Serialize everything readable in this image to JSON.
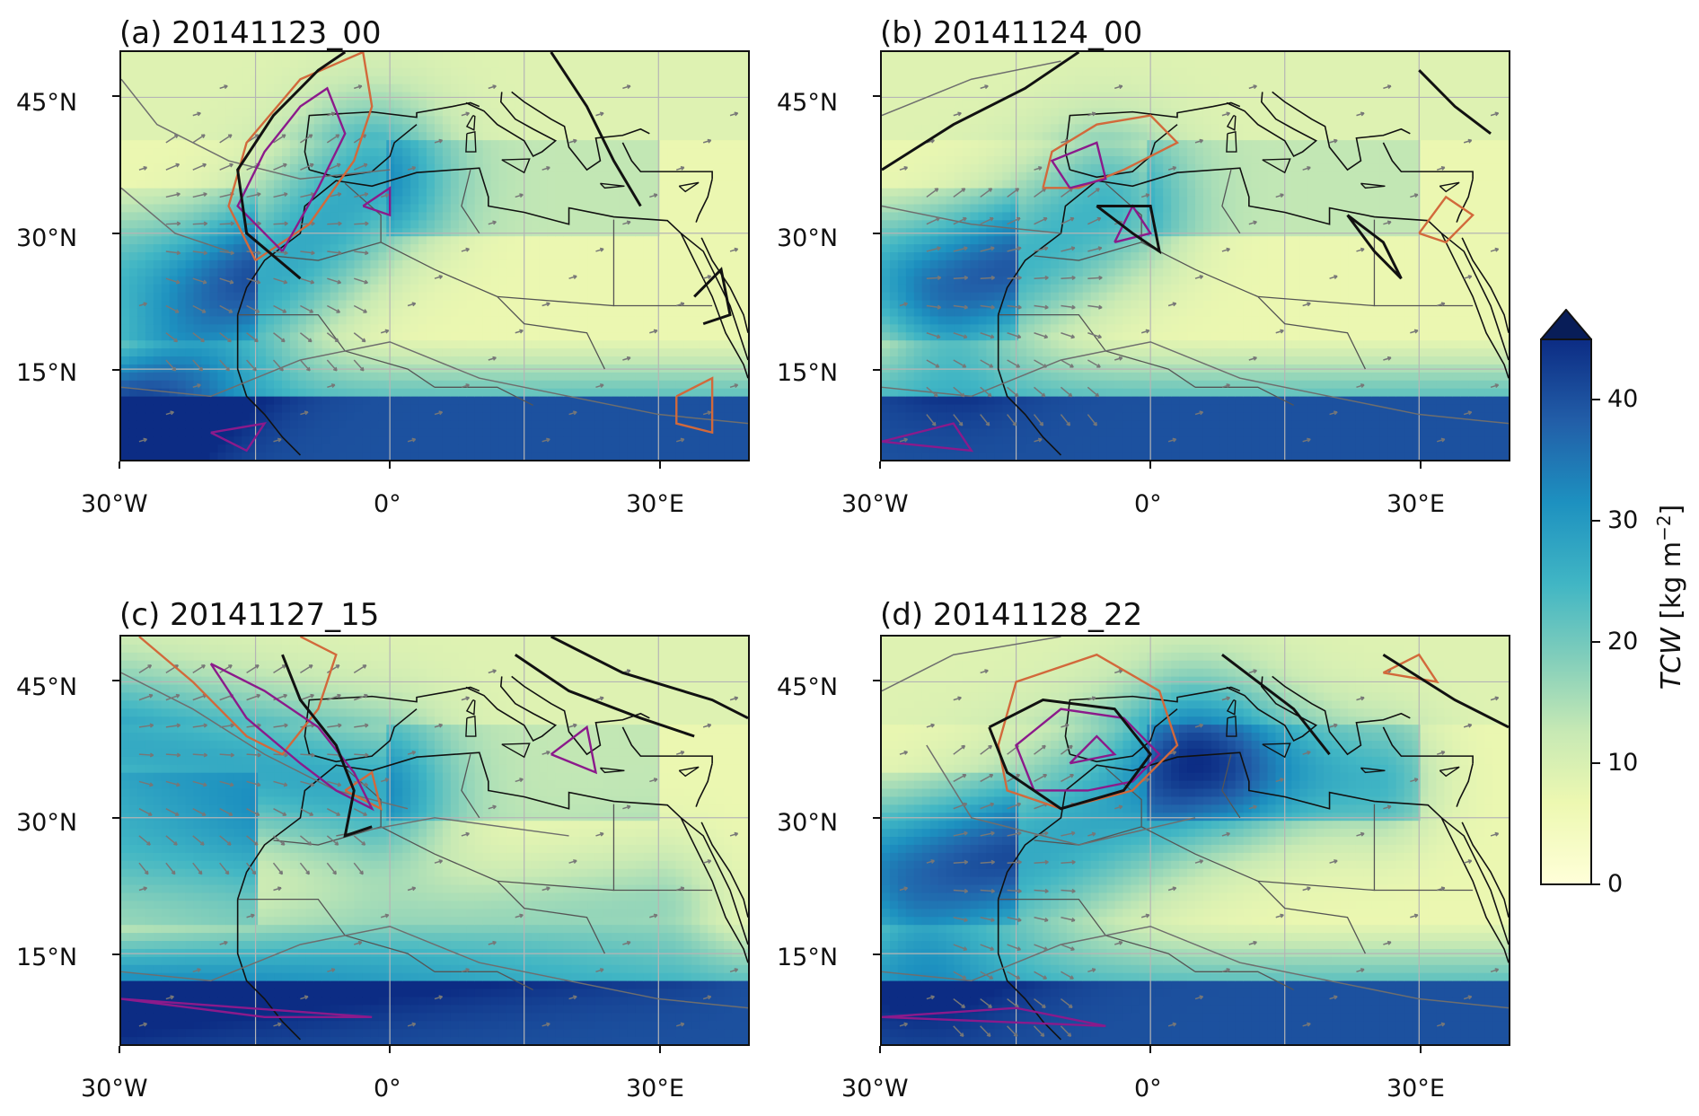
{
  "panels": [
    {
      "id": "a",
      "title": "(a) 20141123_00"
    },
    {
      "id": "b",
      "title": "(b) 20141124_00"
    },
    {
      "id": "c",
      "title": "(c) 20141127_15"
    },
    {
      "id": "d",
      "title": "(d) 20141128_22"
    }
  ],
  "axes": {
    "lat_ticks": [
      "45°N",
      "30°N",
      "15°N"
    ],
    "lon_ticks": [
      "30°W",
      "0°",
      "30°E"
    ]
  },
  "colorbar": {
    "title_var": "TCW",
    "title_units": " [kg m",
    "title_exp": "−2",
    "title_end": "]",
    "ticks": [
      "40",
      "30",
      "20",
      "10",
      "0"
    ],
    "max": 45,
    "colors": {
      "low": "#ffffd9",
      "mid1": "#c7e9b4",
      "mid2": "#7fcdbb",
      "mid3": "#41b6c4",
      "mid4": "#1d91c0",
      "mid5": "#225ea8",
      "high": "#0c2c84",
      "extend": "#081d58"
    }
  },
  "contour_colors": {
    "pressure": "#6e6e6e",
    "jet": "#111111",
    "pv_orange": "#d2693b",
    "pv_purple": "#8b1a8b",
    "vectors": "#777777"
  },
  "map_extent": {
    "lon": [
      -30,
      40
    ],
    "lat": [
      5,
      50
    ]
  }
}
